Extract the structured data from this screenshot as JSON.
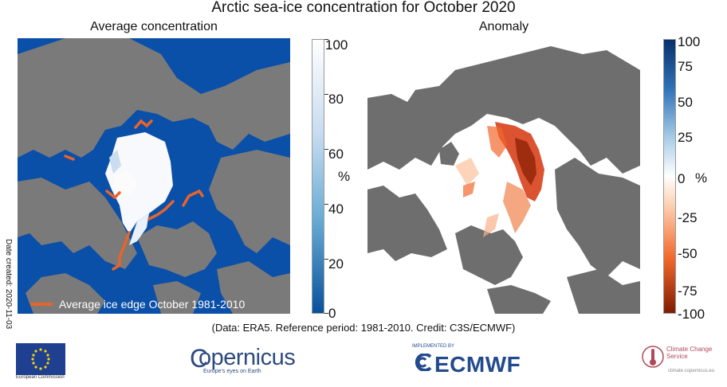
{
  "title": "Arctic sea-ice concentration for October 2020",
  "left_panel": {
    "title": "Average concentration",
    "colorbar": {
      "ticks": [
        "100",
        "80",
        "60",
        "40",
        "20",
        "0"
      ],
      "unit": "%",
      "colors": [
        "#ffffff",
        "#08519c"
      ]
    },
    "legend_label": "Average ice edge October 1981-2010",
    "legend_color": "#e8642a",
    "ocean_color": "#0a4fa8",
    "land_color": "#7a7a7a"
  },
  "right_panel": {
    "title": "Anomaly",
    "colorbar": {
      "ticks": [
        "100",
        "75",
        "50",
        "25",
        "0",
        "-25",
        "-50",
        "-75",
        "-100"
      ],
      "unit": "%",
      "colors": [
        "#08306b",
        "#2f72b8",
        "#a9cde6",
        "#ffffff",
        "#fdc9a8",
        "#f2682c",
        "#7f1d02"
      ]
    },
    "ocean_color": "#ffffff",
    "land_color": "#6e6e6e"
  },
  "side_note": "Date created: 2020-11-03",
  "credit": "(Data: ERA5.  Reference period: 1981-2010.  Credit: C3S/ECMWF)",
  "logos": {
    "eu_label": "European Commission",
    "copernicus": "opernicus",
    "copernicus_c": "C",
    "copernicus_tagline": "Europe's eyes on Earth",
    "ecmwf_small": "IMPLEMENTED BY",
    "ecmwf": "ECMWF",
    "c3s_name": "Climate Change Service",
    "c3s_url": "climate.copernicus.eu"
  }
}
